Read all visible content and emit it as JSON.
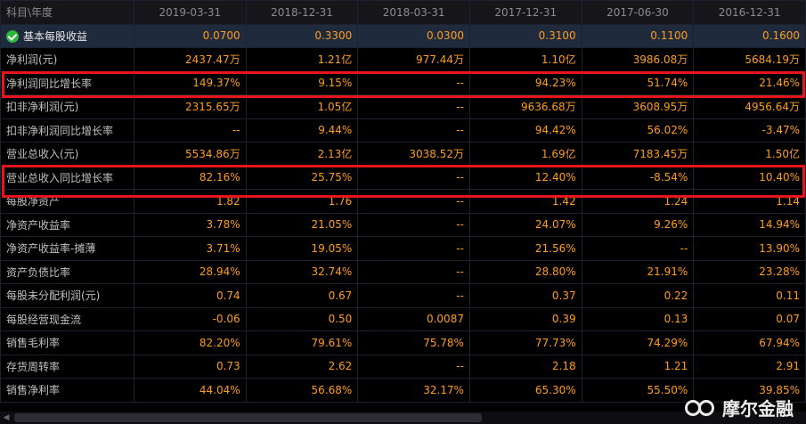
{
  "table": {
    "header_label": "科目\\年度",
    "periods": [
      "2019-03-31",
      "2018-12-31",
      "2018-03-31",
      "2017-12-31",
      "2017-06-30",
      "2016-12-31"
    ],
    "rows": [
      {
        "label": "基本每股收益",
        "values": [
          "0.0700",
          "0.3300",
          "0.0300",
          "0.3100",
          "0.1100",
          "0.1600"
        ]
      },
      {
        "label": "净利润(元)",
        "values": [
          "2437.47万",
          "1.21亿",
          "977.44万",
          "1.10亿",
          "3986.08万",
          "5684.19万"
        ]
      },
      {
        "label": "净利润同比增长率",
        "values": [
          "149.37%",
          "9.15%",
          "--",
          "94.23%",
          "51.74%",
          "21.46%"
        ]
      },
      {
        "label": "扣非净利润(元)",
        "values": [
          "2315.65万",
          "1.05亿",
          "--",
          "9636.68万",
          "3608.95万",
          "4956.64万"
        ]
      },
      {
        "label": "扣非净利润同比增长率",
        "values": [
          "--",
          "9.44%",
          "--",
          "94.42%",
          "56.02%",
          "-3.47%"
        ]
      },
      {
        "label": "营业总收入(元)",
        "values": [
          "5534.86万",
          "2.13亿",
          "3038.52万",
          "1.69亿",
          "7183.45万",
          "1.50亿"
        ]
      },
      {
        "label": "营业总收入同比增长率",
        "values": [
          "82.16%",
          "25.75%",
          "--",
          "12.40%",
          "-8.54%",
          "10.40%"
        ]
      },
      {
        "label": "每股净资产",
        "values": [
          "1.82",
          "1.76",
          "--",
          "1.42",
          "1.24",
          "1.14"
        ]
      },
      {
        "label": "净资产收益率",
        "values": [
          "3.78%",
          "21.05%",
          "--",
          "24.07%",
          "9.26%",
          "14.94%"
        ]
      },
      {
        "label": "净资产收益率-摊薄",
        "values": [
          "3.71%",
          "19.05%",
          "--",
          "21.56%",
          "--",
          "13.90%"
        ]
      },
      {
        "label": "资产负债比率",
        "values": [
          "28.94%",
          "32.74%",
          "--",
          "28.80%",
          "21.91%",
          "23.28%"
        ]
      },
      {
        "label": "每股未分配利润(元)",
        "values": [
          "0.74",
          "0.67",
          "--",
          "0.37",
          "0.22",
          "0.11"
        ]
      },
      {
        "label": "每股经营现金流",
        "values": [
          "-0.06",
          "0.50",
          "0.0087",
          "0.39",
          "0.13",
          "0.07"
        ]
      },
      {
        "label": "销售毛利率",
        "values": [
          "82.20%",
          "79.61%",
          "75.78%",
          "77.73%",
          "74.29%",
          "67.94%"
        ]
      },
      {
        "label": "存货周转率",
        "values": [
          "0.73",
          "2.62",
          "--",
          "2.18",
          "1.21",
          "2.91"
        ]
      },
      {
        "label": "销售净利率",
        "values": [
          "44.04%",
          "56.68%",
          "32.17%",
          "65.30%",
          "55.50%",
          "39.85%"
        ]
      }
    ]
  },
  "watermark": {
    "text": "摩尔金融",
    "icon": "mole-finance-logo-icon"
  },
  "colors": {
    "value": "#ff9d1c",
    "label": "#c0c0c0",
    "highlight": "#e8141b",
    "check": "#2fb43c"
  }
}
